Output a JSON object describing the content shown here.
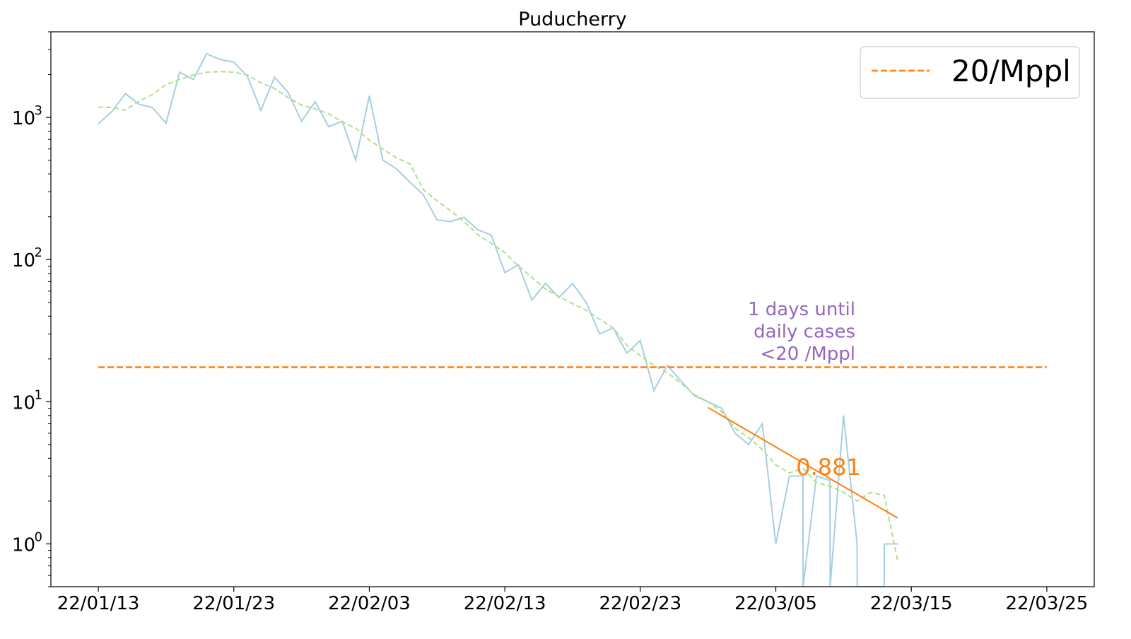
{
  "chart_data": {
    "type": "line",
    "title": "Puducherry",
    "xlabel": "",
    "ylabel": "",
    "x_tick_labels": [
      "22/01/13",
      "22/01/23",
      "22/02/03",
      "22/02/13",
      "22/02/23",
      "22/03/05",
      "22/03/15",
      "22/03/25"
    ],
    "x_tick_days": [
      0,
      10,
      20,
      30,
      40,
      50,
      60,
      70
    ],
    "y_scale": "log",
    "y_ticks": [
      {
        "value": 1,
        "base": "10",
        "exp": "0"
      },
      {
        "value": 10,
        "base": "10",
        "exp": "1"
      },
      {
        "value": 100,
        "base": "10",
        "exp": "2"
      },
      {
        "value": 1000,
        "base": "10",
        "exp": "3"
      }
    ],
    "xlim_days": [
      -3.5,
      73.5
    ],
    "ylim": [
      0.5,
      4000
    ],
    "grid": false,
    "legend": {
      "placement": "top-right",
      "entries": [
        {
          "label": "20/Mppl",
          "color": "#ff7f0e",
          "style": "dashed"
        }
      ]
    },
    "series": [
      {
        "style": "solid",
        "color": "#a6cee3",
        "points": [
          [
            0,
            900
          ],
          [
            1,
            1100
          ],
          [
            2,
            1470
          ],
          [
            3,
            1240
          ],
          [
            4,
            1170
          ],
          [
            5,
            910
          ],
          [
            6,
            2080
          ],
          [
            7,
            1850
          ],
          [
            8,
            2800
          ],
          [
            9,
            2550
          ],
          [
            10,
            2450
          ],
          [
            11,
            1950
          ],
          [
            12,
            1120
          ],
          [
            13,
            1920
          ],
          [
            14,
            1500
          ],
          [
            15,
            940
          ],
          [
            16,
            1290
          ],
          [
            17,
            860
          ],
          [
            18,
            940
          ],
          [
            19,
            500
          ],
          [
            20,
            1420
          ],
          [
            21,
            500
          ],
          [
            22,
            435
          ],
          [
            23,
            350
          ],
          [
            24,
            285
          ],
          [
            25,
            190
          ],
          [
            26,
            185
          ],
          [
            27,
            198
          ],
          [
            28,
            162
          ],
          [
            29,
            149
          ],
          [
            30,
            81
          ],
          [
            31,
            92
          ],
          [
            32,
            52
          ],
          [
            33,
            68
          ],
          [
            34,
            54
          ],
          [
            35,
            68
          ],
          [
            36,
            50
          ],
          [
            37,
            30
          ],
          [
            38,
            33
          ],
          [
            39,
            22
          ],
          [
            40,
            27
          ],
          [
            41,
            12
          ],
          [
            42,
            18
          ],
          [
            43,
            14
          ],
          [
            44,
            11
          ],
          [
            45,
            10
          ],
          [
            46,
            9
          ],
          [
            47,
            6
          ],
          [
            48,
            5
          ],
          [
            49,
            7
          ],
          [
            50,
            1
          ],
          [
            51,
            3
          ],
          [
            52,
            3
          ],
          [
            52.01,
            0.3
          ],
          [
            53,
            3
          ],
          [
            54,
            2.8
          ],
          [
            54.01,
            0.3
          ],
          [
            55,
            8
          ],
          [
            56,
            1
          ],
          [
            56.01,
            0.3
          ],
          [
            58,
            0.3
          ],
          [
            58.01,
            1
          ],
          [
            59,
            1
          ]
        ]
      },
      {
        "style": "dashed",
        "color": "#b2df8a",
        "points": [
          [
            0,
            1180
          ],
          [
            1,
            1175
          ],
          [
            2,
            1125
          ],
          [
            3,
            1300
          ],
          [
            4,
            1450
          ],
          [
            5,
            1700
          ],
          [
            6,
            1850
          ],
          [
            7,
            1990
          ],
          [
            8,
            2080
          ],
          [
            9,
            2100
          ],
          [
            10,
            2080
          ],
          [
            11,
            1990
          ],
          [
            12,
            1750
          ],
          [
            13,
            1600
          ],
          [
            14,
            1380
          ],
          [
            15,
            1220
          ],
          [
            16,
            1150
          ],
          [
            17,
            1060
          ],
          [
            18,
            930
          ],
          [
            19,
            840
          ],
          [
            20,
            690
          ],
          [
            21,
            600
          ],
          [
            22,
            520
          ],
          [
            23,
            470
          ],
          [
            24,
            310
          ],
          [
            25,
            260
          ],
          [
            26,
            220
          ],
          [
            27,
            185
          ],
          [
            28,
            150
          ],
          [
            29,
            130
          ],
          [
            30,
            112
          ],
          [
            31,
            90
          ],
          [
            32,
            75
          ],
          [
            33,
            62
          ],
          [
            34,
            55
          ],
          [
            35,
            49
          ],
          [
            36,
            44
          ],
          [
            37,
            38
          ],
          [
            38,
            33
          ],
          [
            39,
            25
          ],
          [
            40,
            21
          ],
          [
            41,
            18
          ],
          [
            42,
            16
          ],
          [
            43,
            13.5
          ],
          [
            44,
            11.2
          ],
          [
            45,
            10
          ],
          [
            46,
            8.5
          ],
          [
            47,
            6.5
          ],
          [
            48,
            5.6
          ],
          [
            49,
            4.6
          ],
          [
            50,
            3.6
          ],
          [
            51,
            3.15
          ],
          [
            52,
            3.4
          ],
          [
            53,
            2.7
          ],
          [
            54,
            2.55
          ],
          [
            55,
            2.3
          ],
          [
            56,
            2.0
          ],
          [
            57,
            2.3
          ],
          [
            58,
            2.2
          ],
          [
            59,
            0.75
          ]
        ]
      }
    ],
    "threshold": {
      "label": "20/Mppl",
      "value": 17.5,
      "x_start": 0,
      "x_end": 70,
      "color": "#ff7f0e",
      "style": "dashed"
    },
    "fit_line": {
      "points": [
        [
          45,
          9.1
        ],
        [
          59,
          1.52
        ]
      ],
      "color": "#ff7f0e",
      "label": "0.881"
    },
    "annotation": {
      "lines": [
        "1 days until",
        "daily cases",
        "<20 /Mppl"
      ],
      "color": "#9467bd"
    }
  }
}
